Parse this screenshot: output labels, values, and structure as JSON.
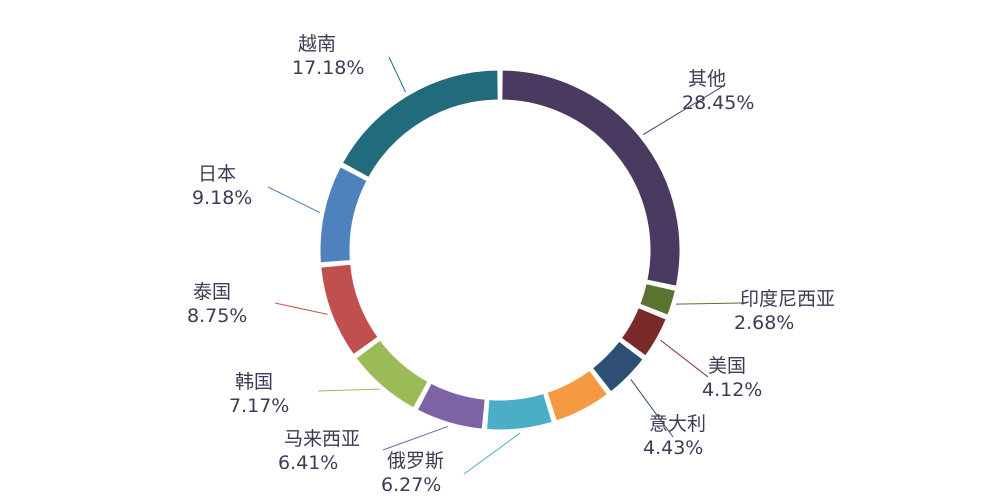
{
  "chart_data": {
    "type": "pie",
    "style": "donut",
    "series": [
      {
        "name": "其他",
        "label": "28.45%",
        "value": 28.45,
        "color": "#4a3a5f"
      },
      {
        "name": "印度尼西亚",
        "label": "2.68%",
        "value": 2.68,
        "color": "#5a7330"
      },
      {
        "name": "美国",
        "label": "4.12%",
        "value": 4.12,
        "color": "#7b2a2a"
      },
      {
        "name": "意大利",
        "label": "4.43%",
        "value": 4.43,
        "color": "#2d4f75"
      },
      {
        "name": "",
        "label": "",
        "value": 5.5,
        "color": "#f59a43"
      },
      {
        "name": "俄罗斯",
        "label": "6.27%",
        "value": 6.27,
        "color": "#4aaec6"
      },
      {
        "name": "马来西亚",
        "label": "6.41%",
        "value": 6.41,
        "color": "#7d63a6"
      },
      {
        "name": "韩国",
        "label": "7.17%",
        "value": 7.17,
        "color": "#9bbb59"
      },
      {
        "name": "泰国",
        "label": "8.75%",
        "value": 8.75,
        "color": "#c0504d"
      },
      {
        "name": "日本",
        "label": "9.18%",
        "value": 9.18,
        "color": "#4f81bd"
      },
      {
        "name": "越南",
        "label": "17.18%",
        "value": 17.18,
        "color": "#226b7c"
      }
    ]
  }
}
